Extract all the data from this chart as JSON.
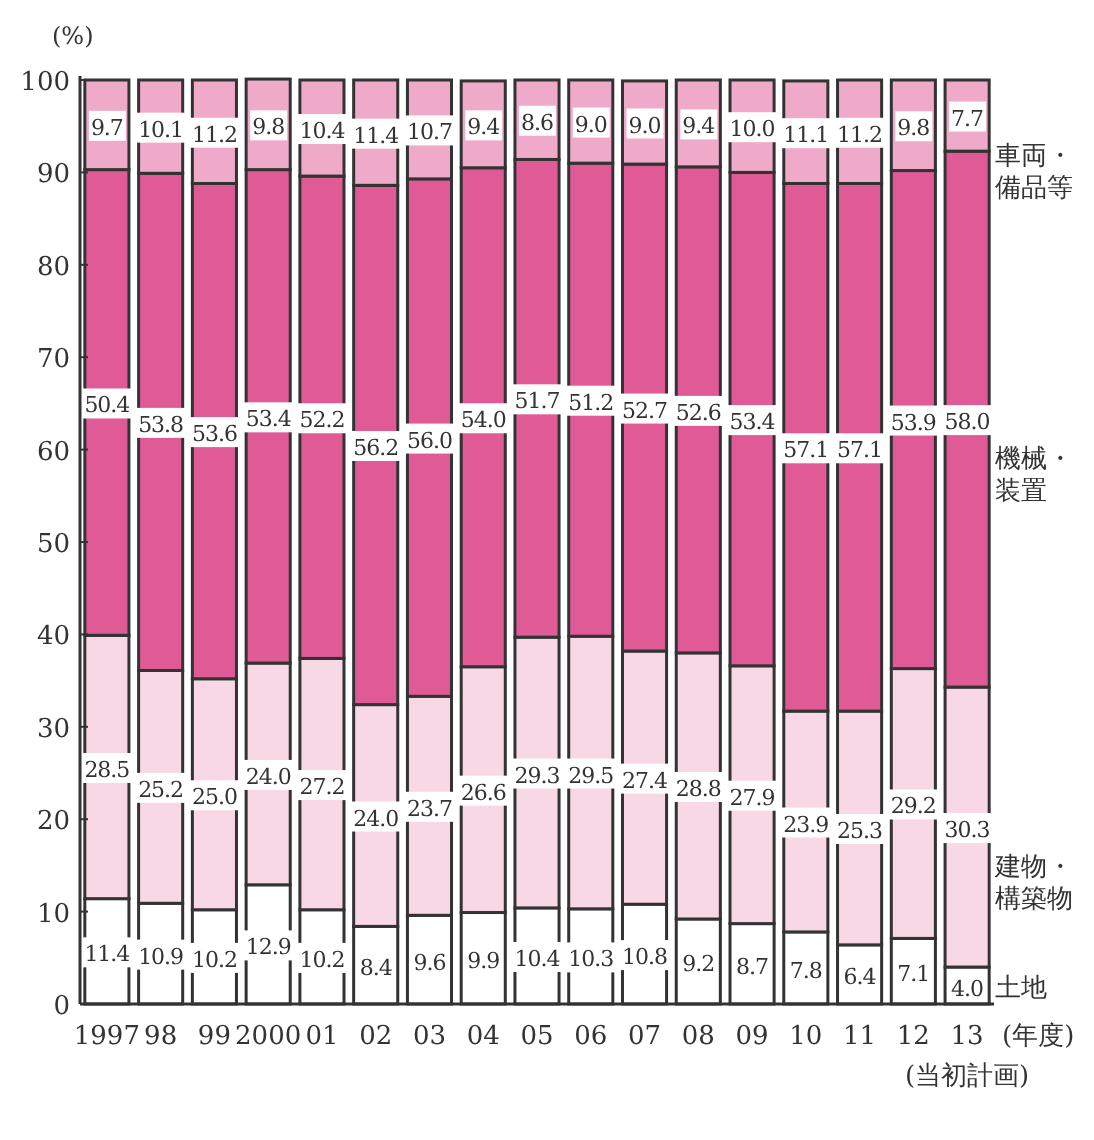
{
  "chart_data": {
    "type": "bar",
    "stacked": true,
    "legend": "right",
    "grid": false,
    "ylabel": "(%)",
    "xlabel": "(年度)",
    "annotations": [
      "(当初計画)"
    ],
    "categories": [
      "1997",
      "98",
      "99",
      "2000",
      "01",
      "02",
      "03",
      "04",
      "05",
      "06",
      "07",
      "08",
      "09",
      "10",
      "11",
      "12",
      "13"
    ],
    "ylim": [
      0,
      100
    ],
    "yticks": [
      0,
      10,
      20,
      30,
      40,
      50,
      60,
      70,
      80,
      90,
      100
    ],
    "series": [
      {
        "name": "土地",
        "color": "#ffffff",
        "values": [
          11.4,
          10.9,
          10.2,
          12.9,
          10.2,
          8.4,
          9.6,
          9.9,
          10.4,
          10.3,
          10.8,
          9.2,
          8.7,
          7.8,
          6.4,
          7.1,
          4.0
        ],
        "value_labels": [
          "11.4",
          "10.9",
          "10.2",
          "12.9",
          "10.2",
          "8.4",
          "9.6",
          "9.9",
          "10.4",
          "10.3",
          "10.8",
          "9.2",
          "8.7",
          "7.8",
          "6.4",
          "7.1",
          "4.0"
        ]
      },
      {
        "name": "建物・構築物",
        "color": "#f8d8e4",
        "values": [
          28.5,
          25.2,
          25.0,
          24.0,
          27.2,
          24.0,
          23.7,
          26.6,
          29.3,
          29.5,
          27.4,
          28.8,
          27.9,
          23.9,
          25.3,
          29.2,
          30.3
        ],
        "value_labels": [
          "28.5",
          "25.2",
          "25.0",
          "24.0",
          "27.2",
          "24.0",
          "23.7",
          "26.6",
          "29.3",
          "29.5",
          "27.4",
          "28.8",
          "27.9",
          "23.9",
          "25.3",
          "29.2",
          "30.3"
        ]
      },
      {
        "name": "機械・装置",
        "color": "#e05a96",
        "values": [
          50.4,
          53.8,
          53.6,
          53.4,
          52.2,
          56.2,
          56.0,
          54.0,
          51.7,
          51.2,
          52.7,
          52.6,
          53.4,
          57.1,
          57.1,
          53.9,
          58.0
        ],
        "value_labels": [
          "50.4",
          "53.8",
          "53.6",
          "53.4",
          "52.2",
          "56.2",
          "56.0",
          "54.0",
          "51.7",
          "51.2",
          "52.7",
          "52.6",
          "53.4",
          "57.1",
          "57.1",
          "53.9",
          "58.0"
        ]
      },
      {
        "name": "車両・備品等",
        "color": "#eeaac8",
        "values": [
          9.7,
          10.1,
          11.2,
          9.8,
          10.4,
          11.4,
          10.7,
          9.4,
          8.6,
          9.0,
          9.0,
          9.4,
          10.0,
          11.1,
          11.2,
          9.8,
          7.7
        ],
        "value_labels": [
          "9.7",
          "10.1",
          "11.2",
          "9.8",
          "10.4",
          "11.4",
          "10.7",
          "9.4",
          "8.6",
          "9.0",
          "9.0",
          "9.4",
          "10.0",
          "11.1",
          "11.2",
          "9.8",
          "7.7"
        ]
      }
    ]
  }
}
